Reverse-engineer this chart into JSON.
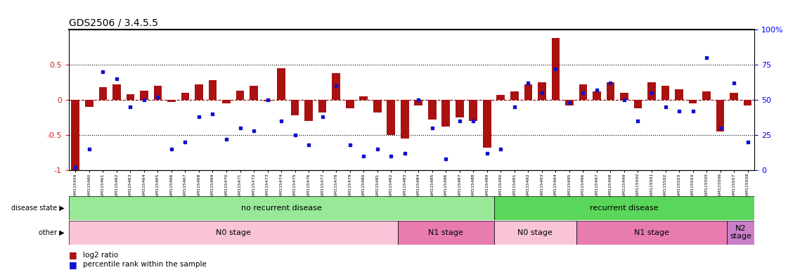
{
  "title": "GDS2506 / 3.4.5.5",
  "samples": [
    "GSM115459",
    "GSM115460",
    "GSM115461",
    "GSM115462",
    "GSM115463",
    "GSM115464",
    "GSM115465",
    "GSM115466",
    "GSM115467",
    "GSM115468",
    "GSM115469",
    "GSM115470",
    "GSM115471",
    "GSM115472",
    "GSM115473",
    "GSM115474",
    "GSM115475",
    "GSM115476",
    "GSM115477",
    "GSM115478",
    "GSM115479",
    "GSM115480",
    "GSM115481",
    "GSM115482",
    "GSM115483",
    "GSM115484",
    "GSM115485",
    "GSM115486",
    "GSM115487",
    "GSM115488",
    "GSM115489",
    "GSM115490",
    "GSM115491",
    "GSM115492",
    "GSM115493",
    "GSM115494",
    "GSM115495",
    "GSM115496",
    "GSM115497",
    "GSM115498",
    "GSM115499",
    "GSM115500",
    "GSM115501",
    "GSM115502",
    "GSM115503",
    "GSM115504",
    "GSM115505",
    "GSM115506",
    "GSM115507",
    "GSM115508"
  ],
  "log2_ratio": [
    -1.0,
    -0.1,
    0.18,
    0.22,
    0.08,
    0.13,
    0.2,
    -0.03,
    0.1,
    0.22,
    0.28,
    -0.05,
    0.13,
    0.2,
    -0.02,
    0.45,
    -0.22,
    -0.3,
    -0.18,
    0.38,
    -0.12,
    0.05,
    -0.18,
    -0.5,
    -0.55,
    -0.08,
    -0.28,
    -0.38,
    -0.25,
    -0.3,
    -0.68,
    0.07,
    0.12,
    0.22,
    0.25,
    0.88,
    -0.08,
    0.22,
    0.12,
    0.25,
    0.1,
    -0.12,
    0.25,
    0.2,
    0.15,
    -0.05,
    0.12,
    -0.45,
    0.1,
    -0.08
  ],
  "percentile": [
    2,
    15,
    70,
    65,
    45,
    50,
    52,
    15,
    20,
    38,
    40,
    22,
    30,
    28,
    50,
    35,
    25,
    18,
    38,
    60,
    18,
    10,
    15,
    10,
    12,
    50,
    30,
    8,
    35,
    35,
    12,
    15,
    45,
    62,
    55,
    72,
    48,
    55,
    57,
    62,
    50,
    35,
    55,
    45,
    42,
    42,
    80,
    30,
    62,
    20
  ],
  "disease_state_groups": [
    {
      "label": "no recurrent disease",
      "start": 0,
      "end": 31,
      "color": "#98E898"
    },
    {
      "label": "recurrent disease",
      "start": 31,
      "end": 50,
      "color": "#5AD65A"
    }
  ],
  "other_groups": [
    {
      "label": "N0 stage",
      "start": 0,
      "end": 24,
      "color": "#F9C4D8"
    },
    {
      "label": "N1 stage",
      "start": 24,
      "end": 31,
      "color": "#E87BB0"
    },
    {
      "label": "N0 stage",
      "start": 31,
      "end": 37,
      "color": "#F9C4D8"
    },
    {
      "label": "N1 stage",
      "start": 37,
      "end": 48,
      "color": "#E87BB0"
    },
    {
      "label": "N2\nstage",
      "start": 48,
      "end": 50,
      "color": "#C880C8"
    }
  ],
  "bar_color": "#AA1111",
  "dot_color": "#1111CC",
  "ylim_left": [
    -1.0,
    1.0
  ],
  "ylim_right": [
    0,
    100
  ],
  "yticks_left": [
    -1.0,
    -0.5,
    0.0,
    0.5
  ],
  "ytick_labels_left": [
    "-1",
    "-0.5",
    "0",
    "0.5"
  ],
  "yticks_right": [
    0,
    25,
    50,
    75,
    100
  ],
  "ytick_labels_right": [
    "0",
    "25",
    "50",
    "75",
    "100%"
  ],
  "hlines_dotted": [
    -0.5,
    0.5
  ],
  "hline_dashed": 0.0
}
